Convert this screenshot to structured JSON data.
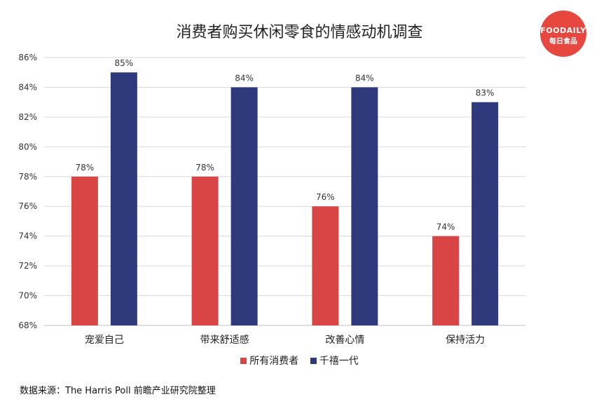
{
  "logo": {
    "line1": "FOODAILY",
    "line2": "每日食品"
  },
  "source": "数据来源：The Harris Poll 前瞻产业研究院整理",
  "chart_data": {
    "type": "bar",
    "title": "消费者购买休闲零食的情感动机调查",
    "categories": [
      "宠爱自己",
      "带来舒适感",
      "改善心情",
      "保持活力"
    ],
    "series": [
      {
        "name": "所有消费者",
        "color": "#d94545",
        "values": [
          78,
          78,
          76,
          74
        ]
      },
      {
        "name": "千禧一代",
        "color": "#2e3a7c",
        "values": [
          85,
          84,
          84,
          83
        ]
      }
    ],
    "ylim": [
      68,
      86
    ],
    "yticks": [
      "68%",
      "70%",
      "72%",
      "74%",
      "76%",
      "78%",
      "80%",
      "82%",
      "84%",
      "86%"
    ],
    "value_suffix": "%",
    "grid": true,
    "legend_position": "bottom"
  }
}
